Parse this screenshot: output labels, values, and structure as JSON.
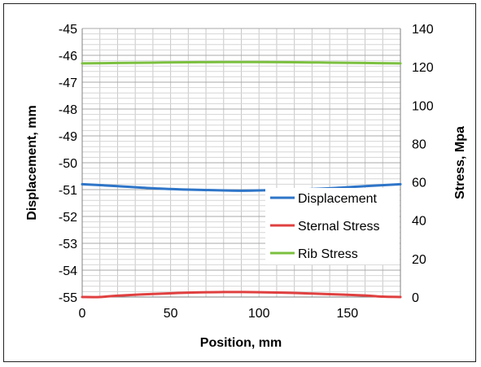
{
  "chart_data": {
    "type": "line",
    "title": "",
    "xlabel": "Position, mm",
    "ylabel_left": "Displacement, mm",
    "ylabel_right": "Stress, Mpa",
    "xlim": [
      0,
      180
    ],
    "ylim_left": [
      -55,
      -45
    ],
    "ylim_right": [
      0,
      140
    ],
    "x_ticks": [
      0,
      50,
      100,
      150
    ],
    "x_tick_labels": [
      "0",
      "50",
      "100",
      "150"
    ],
    "y_left_ticks": [
      -45,
      -46,
      -47,
      -48,
      -49,
      -50,
      -51,
      -52,
      -53,
      -54,
      -55
    ],
    "y_left_tick_labels": [
      "-45",
      "-46",
      "-47",
      "-48",
      "-49",
      "-50",
      "-51",
      "-52",
      "-53",
      "-54",
      "-55"
    ],
    "y_right_ticks": [
      140,
      120,
      100,
      80,
      60,
      40,
      20,
      0
    ],
    "y_right_tick_labels": [
      "140",
      "120",
      "100",
      "80",
      "60",
      "40",
      "20",
      "0"
    ],
    "grid": true,
    "legend_position": "inside-right",
    "series": [
      {
        "name": "Displacement",
        "axis": "left",
        "color": "#2e75c8",
        "x": [
          0,
          20,
          40,
          60,
          80,
          90,
          100,
          120,
          140,
          160,
          180
        ],
        "y": [
          -50.8,
          -50.87,
          -50.95,
          -51.0,
          -51.03,
          -51.04,
          -51.03,
          -51.0,
          -50.95,
          -50.87,
          -50.8
        ]
      },
      {
        "name": "Sternal Stress",
        "axis": "right",
        "color": "#e04040",
        "x": [
          0,
          10,
          20,
          40,
          60,
          80,
          90,
          100,
          120,
          140,
          160,
          170,
          180
        ],
        "y": [
          0,
          0,
          0.7,
          1.6,
          2.3,
          2.6,
          2.6,
          2.5,
          2.1,
          1.5,
          0.8,
          0.2,
          0
        ]
      },
      {
        "name": "Rib Stress",
        "axis": "right",
        "color": "#7cc040",
        "x": [
          0,
          20,
          40,
          60,
          80,
          90,
          100,
          120,
          140,
          160,
          180
        ],
        "y": [
          121.8,
          122.0,
          122.2,
          122.4,
          122.5,
          122.5,
          122.5,
          122.4,
          122.2,
          122.0,
          121.8
        ]
      }
    ]
  }
}
